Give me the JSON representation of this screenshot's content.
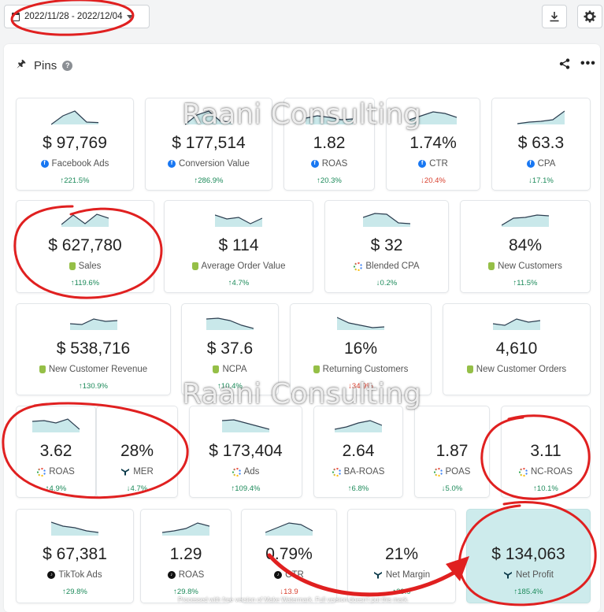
{
  "toolbar": {
    "date_range": "2022/11/28 - 2022/12/04",
    "download_icon": "download-icon",
    "settings_icon": "gear-icon"
  },
  "section": {
    "title": "Pins",
    "pin_icon": "pin-icon",
    "help_icon": "help-icon",
    "help_glyph": "?",
    "share_icon": "share-icon",
    "more_icon": "more-icon",
    "more_glyph": "•••"
  },
  "metrics": [
    {
      "value": "$ 97,769",
      "label": "Facebook Ads",
      "change": "↑221.5%",
      "trend": "up",
      "source": "facebook",
      "spark": [
        0,
        55,
        85,
        15,
        12
      ]
    },
    {
      "value": "$ 177,514",
      "label": "Conversion Value",
      "change": "↑286.9%",
      "trend": "up",
      "source": "facebook",
      "spark": [
        0,
        60,
        85,
        20,
        15
      ]
    },
    {
      "value": "1.82",
      "label": "ROAS",
      "change": "↑20.3%",
      "trend": "up",
      "source": "facebook",
      "spark": [
        40,
        55,
        45,
        30,
        35
      ]
    },
    {
      "value": "1.74%",
      "label": "CTR",
      "change": "↓20.4%",
      "trend": "down",
      "source": "facebook",
      "spark": [
        30,
        55,
        80,
        70,
        45
      ]
    },
    {
      "value": "$ 63.3",
      "label": "CPA",
      "change": "↓17.1%",
      "trend": "up",
      "source": "facebook",
      "spark": [
        5,
        15,
        20,
        30,
        85
      ]
    },
    {
      "value": "$ 627,780",
      "label": "Sales",
      "change": "↑119.6%",
      "trend": "up",
      "source": "shopify",
      "spark": [
        15,
        75,
        20,
        80,
        55
      ]
    },
    {
      "value": "$ 114",
      "label": "Average Order Value",
      "change": "↑4.7%",
      "trend": "up",
      "source": "shopify",
      "spark": [
        75,
        50,
        60,
        20,
        55
      ]
    },
    {
      "value": "$ 32",
      "label": "Blended CPA",
      "change": "↓0.2%",
      "trend": "up",
      "source": "blended",
      "spark": [
        60,
        85,
        80,
        25,
        20
      ]
    },
    {
      "value": "84%",
      "label": "New Customers",
      "change": "↑11.5%",
      "trend": "up",
      "source": "shopify",
      "spark": [
        10,
        55,
        60,
        75,
        70
      ]
    },
    {
      "value": "$ 538,716",
      "label": "New Customer Revenue",
      "change": "↑130.9%",
      "trend": "up",
      "source": "shopify",
      "spark": [
        40,
        35,
        70,
        55,
        60
      ]
    },
    {
      "value": "$ 37.6",
      "label": "NCPA",
      "change": "↑10.4%",
      "trend": "up",
      "source": "shopify",
      "spark": [
        70,
        75,
        60,
        30,
        10
      ]
    },
    {
      "value": "16%",
      "label": "Returning Customers",
      "change": "↓34.9%",
      "trend": "down",
      "source": "shopify",
      "spark": [
        80,
        45,
        30,
        15,
        20
      ]
    },
    {
      "value": "4,610",
      "label": "New Customer Orders",
      "change": "",
      "trend": "up",
      "source": "shopify",
      "spark": [
        40,
        30,
        70,
        50,
        60
      ]
    },
    {
      "value": "3.62",
      "label": "ROAS",
      "change": "↑4.9%",
      "trend": "up",
      "source": "blended",
      "spark": [
        70,
        75,
        60,
        85,
        20
      ]
    },
    {
      "value": "28%",
      "label": "MER",
      "change": "↓4.7%",
      "trend": "up",
      "source": "triple",
      "spark": []
    },
    {
      "value": "$ 173,404",
      "label": "Ads",
      "change": "↑109.4%",
      "trend": "up",
      "source": "blended",
      "spark": [
        75,
        80,
        60,
        40,
        20
      ]
    },
    {
      "value": "2.64",
      "label": "BA-ROAS",
      "change": "↑6.8%",
      "trend": "up",
      "source": "blended",
      "spark": [
        20,
        35,
        60,
        75,
        45
      ]
    },
    {
      "value": "1.87",
      "label": "POAS",
      "change": "↓5.0%",
      "trend": "up",
      "source": "blended",
      "spark": []
    },
    {
      "value": "3.11",
      "label": "NC-ROAS",
      "change": "↑10.1%",
      "trend": "up",
      "source": "blended",
      "spark": []
    },
    {
      "value": "$ 67,381",
      "label": "TikTok Ads",
      "change": "↑29.8%",
      "trend": "up",
      "source": "tiktok",
      "spark": [
        85,
        60,
        50,
        30,
        20
      ]
    },
    {
      "value": "1.29",
      "label": "ROAS",
      "change": "↑29.8%",
      "trend": "up",
      "source": "tiktok",
      "spark": [
        20,
        30,
        45,
        80,
        60
      ]
    },
    {
      "value": "0.79%",
      "label": "CTR",
      "change": "↓13.9",
      "trend": "down",
      "source": "tiktok",
      "spark": [
        20,
        50,
        80,
        70,
        30
      ]
    },
    {
      "value": "21%",
      "label": "Net Margin",
      "change": "↑29.9",
      "trend": "up",
      "source": "triple",
      "spark": []
    },
    {
      "value": "$ 134,063",
      "label": "Net Profit",
      "change": "↑185.4%",
      "trend": "up",
      "source": "triple",
      "spark": [],
      "highlight": true
    }
  ],
  "watermark": {
    "text": "Raani Consulting",
    "footer": "Processed with free version of Make Watermark. Full version doesn't put this mark."
  },
  "colors": {
    "spark_fill": "#c9e8ea",
    "spark_line": "#2c3e50",
    "up": "#1c8a5a",
    "down": "#d9402f",
    "highlight": "#cdebec",
    "annotation": "#e02020"
  }
}
